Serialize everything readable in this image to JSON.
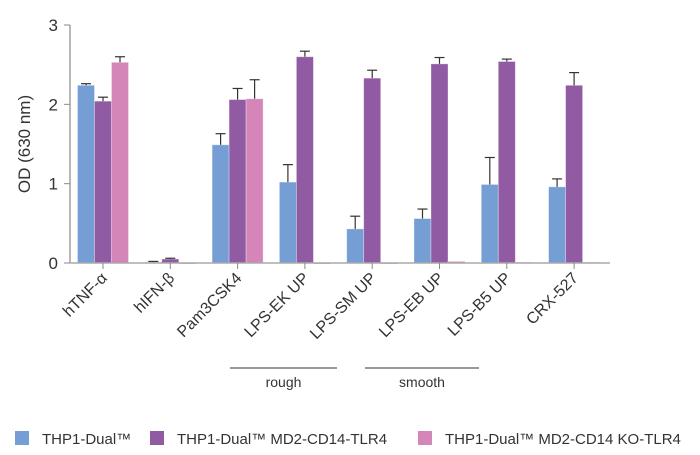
{
  "chart_data": {
    "type": "bar",
    "title": "",
    "xlabel": "",
    "ylabel": "OD (630 nm)",
    "ylim": [
      0,
      3
    ],
    "yticks": [
      0,
      1,
      2,
      3
    ],
    "grid": false,
    "legend_position": "bottom",
    "categories": [
      "hTNF-α",
      "hIFN-β",
      "Pam3CSK4",
      "LPS-EK UP",
      "LPS-SM UP",
      "LPS-EB UP",
      "LPS-B5 UP",
      "CRX-527"
    ],
    "series": [
      {
        "name": "THP1-Dual™",
        "color": "#759fd4",
        "values": [
          2.24,
          0.01,
          1.49,
          1.02,
          0.43,
          0.56,
          0.99,
          0.96
        ],
        "errors": [
          0.02,
          0.01,
          0.14,
          0.22,
          0.16,
          0.12,
          0.34,
          0.1
        ]
      },
      {
        "name": "THP1-Dual™ MD2-CD14-TLR4",
        "color": "#915ba3",
        "values": [
          2.04,
          0.05,
          2.06,
          2.6,
          2.33,
          2.51,
          2.54,
          2.24
        ],
        "errors": [
          0.05,
          0.01,
          0.14,
          0.07,
          0.1,
          0.08,
          0.03,
          0.16
        ]
      },
      {
        "name": "THP1-Dual™ MD2-CD14 KO-TLR4",
        "color": "#d486b8",
        "values": [
          2.53,
          0.0,
          2.07,
          0.0,
          0.0,
          0.02,
          0.01,
          0.01
        ],
        "errors": [
          0.07,
          0.0,
          0.24,
          0.0,
          0.0,
          0.0,
          0.0,
          0.0
        ]
      }
    ],
    "annotations": [
      {
        "text": "rough",
        "spans": [
          "LPS-EK UP",
          "LPS-SM UP"
        ]
      },
      {
        "text": "smooth",
        "spans": [
          "LPS-EB UP",
          "LPS-B5 UP"
        ]
      }
    ]
  }
}
